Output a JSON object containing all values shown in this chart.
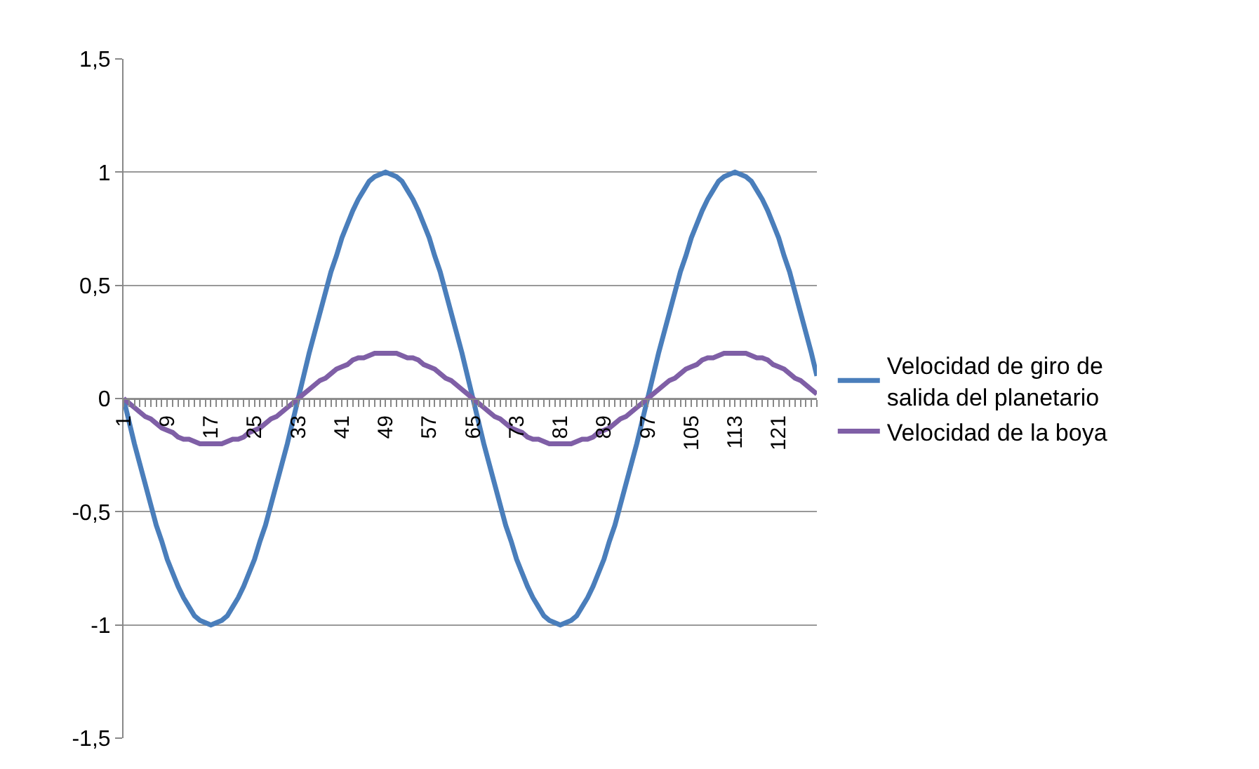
{
  "chart_data": {
    "type": "line",
    "categories": [
      "1",
      null,
      null,
      null,
      null,
      null,
      null,
      null,
      "9",
      null,
      null,
      null,
      null,
      null,
      null,
      null,
      "17",
      null,
      null,
      null,
      null,
      null,
      null,
      null,
      "25",
      null,
      null,
      null,
      null,
      null,
      null,
      null,
      "33",
      null,
      null,
      null,
      null,
      null,
      null,
      null,
      "41",
      null,
      null,
      null,
      null,
      null,
      null,
      null,
      "49",
      null,
      null,
      null,
      null,
      null,
      null,
      null,
      "57",
      null,
      null,
      null,
      null,
      null,
      null,
      null,
      "65",
      null,
      null,
      null,
      null,
      null,
      null,
      null,
      "73",
      null,
      null,
      null,
      null,
      null,
      null,
      null,
      "81",
      null,
      null,
      null,
      null,
      null,
      null,
      null,
      "89",
      null,
      null,
      null,
      null,
      null,
      null,
      null,
      "97",
      null,
      null,
      null,
      null,
      null,
      null,
      null,
      "105",
      null,
      null,
      null,
      null,
      null,
      null,
      null,
      "113",
      null,
      null,
      null,
      null,
      null,
      null,
      null,
      "121",
      null,
      null,
      null,
      null,
      null,
      null,
      null
    ],
    "series": [
      {
        "name": "Velocidad de giro de salida del planetario",
        "color": "#4a7ebb",
        "values": [
          0,
          -0.1,
          -0.2,
          -0.29,
          -0.38,
          -0.47,
          -0.56,
          -0.63,
          -0.71,
          -0.77,
          -0.83,
          -0.88,
          -0.92,
          -0.96,
          -0.98,
          -0.99,
          -1,
          -0.99,
          -0.98,
          -0.96,
          -0.92,
          -0.88,
          -0.83,
          -0.77,
          -0.71,
          -0.63,
          -0.56,
          -0.47,
          -0.38,
          -0.29,
          -0.2,
          -0.1,
          0,
          0.1,
          0.2,
          0.29,
          0.38,
          0.47,
          0.56,
          0.63,
          0.71,
          0.77,
          0.83,
          0.88,
          0.92,
          0.96,
          0.98,
          0.99,
          1,
          0.99,
          0.98,
          0.96,
          0.92,
          0.88,
          0.83,
          0.77,
          0.71,
          0.63,
          0.56,
          0.47,
          0.38,
          0.29,
          0.2,
          0.1,
          0,
          -0.1,
          -0.2,
          -0.29,
          -0.38,
          -0.47,
          -0.56,
          -0.63,
          -0.71,
          -0.77,
          -0.83,
          -0.88,
          -0.92,
          -0.96,
          -0.98,
          -0.99,
          -1,
          -0.99,
          -0.98,
          -0.96,
          -0.92,
          -0.88,
          -0.83,
          -0.77,
          -0.71,
          -0.63,
          -0.56,
          -0.47,
          -0.38,
          -0.29,
          -0.2,
          -0.1,
          0,
          0.1,
          0.2,
          0.29,
          0.38,
          0.47,
          0.56,
          0.63,
          0.71,
          0.77,
          0.83,
          0.88,
          0.92,
          0.96,
          0.98,
          0.99,
          1,
          0.99,
          0.98,
          0.96,
          0.92,
          0.88,
          0.83,
          0.77,
          0.71,
          0.63,
          0.56,
          0.47,
          0.38,
          0.29,
          0.2,
          0.1
        ]
      },
      {
        "name": "Velocidad de la boya",
        "color": "#7f5fa6",
        "values": [
          0,
          -0.02,
          -0.04,
          -0.06,
          -0.08,
          -0.09,
          -0.11,
          -0.13,
          -0.14,
          -0.15,
          -0.17,
          -0.18,
          -0.18,
          -0.19,
          -0.2,
          -0.2,
          -0.2,
          -0.2,
          -0.2,
          -0.19,
          -0.18,
          -0.18,
          -0.17,
          -0.15,
          -0.14,
          -0.13,
          -0.11,
          -0.09,
          -0.08,
          -0.06,
          -0.04,
          -0.02,
          0,
          0.02,
          0.04,
          0.06,
          0.08,
          0.09,
          0.11,
          0.13,
          0.14,
          0.15,
          0.17,
          0.18,
          0.18,
          0.19,
          0.2,
          0.2,
          0.2,
          0.2,
          0.2,
          0.19,
          0.18,
          0.18,
          0.17,
          0.15,
          0.14,
          0.13,
          0.11,
          0.09,
          0.08,
          0.06,
          0.04,
          0.02,
          0,
          -0.02,
          -0.04,
          -0.06,
          -0.08,
          -0.09,
          -0.11,
          -0.13,
          -0.14,
          -0.15,
          -0.17,
          -0.18,
          -0.18,
          -0.19,
          -0.2,
          -0.2,
          -0.2,
          -0.2,
          -0.2,
          -0.19,
          -0.18,
          -0.18,
          -0.17,
          -0.15,
          -0.14,
          -0.13,
          -0.11,
          -0.09,
          -0.08,
          -0.06,
          -0.04,
          -0.02,
          0,
          0.02,
          0.04,
          0.06,
          0.08,
          0.09,
          0.11,
          0.13,
          0.14,
          0.15,
          0.17,
          0.18,
          0.18,
          0.19,
          0.2,
          0.2,
          0.2,
          0.2,
          0.2,
          0.19,
          0.18,
          0.18,
          0.17,
          0.15,
          0.14,
          0.13,
          0.11,
          0.09,
          0.08,
          0.06,
          0.04,
          0.02
        ]
      }
    ],
    "ylim": [
      -1.5,
      1.5
    ],
    "yticks": [
      {
        "value": -1.5,
        "label": "-1,5"
      },
      {
        "value": -1,
        "label": "-1"
      },
      {
        "value": -0.5,
        "label": "-0,5"
      },
      0,
      {
        "value": 0.5,
        "label": "0,5"
      },
      1,
      {
        "value": 1.5,
        "label": "1,5"
      }
    ],
    "grid": "y",
    "legend": "right",
    "marker": "none",
    "line_style": "solid"
  }
}
